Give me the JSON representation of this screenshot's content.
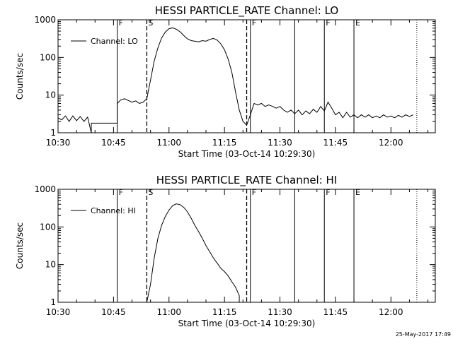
{
  "footer_timestamp": "25-May-2017 17:49",
  "chart_data": [
    {
      "type": "line",
      "title": "HESSI PARTICLE_RATE Channel: LO",
      "xlabel": "Start Time (03-Oct-14 10:29:30)",
      "ylabel": "Counts/sec",
      "xlim": [
        "10:30",
        "12:12"
      ],
      "ylim": [
        1,
        1000
      ],
      "yscale": "log",
      "x_ticks": [
        "10:30",
        "10:45",
        "11:00",
        "11:15",
        "11:30",
        "11:45",
        "12:00"
      ],
      "y_ticks": [
        "1",
        "10",
        "100",
        "1000"
      ],
      "legend": "top-left",
      "series": [
        {
          "name": "Channel: LO",
          "points": [
            [
              "10:30",
              2.5
            ],
            [
              "10:31",
              2.2
            ],
            [
              "10:32",
              2.8
            ],
            [
              "10:33",
              2.0
            ],
            [
              "10:34",
              2.8
            ],
            [
              "10:35",
              2.1
            ],
            [
              "10:36",
              2.7
            ],
            [
              "10:37",
              2.0
            ],
            [
              "10:38",
              2.6
            ],
            [
              "10:39",
              1.0
            ],
            [
              "10:39",
              1.8
            ],
            [
              "10:40",
              1.8
            ],
            [
              "10:42",
              1.8
            ],
            [
              "10:44",
              1.8
            ],
            [
              "10:46",
              1.8
            ],
            [
              "10:46",
              6.0
            ],
            [
              "10:47",
              7.5
            ],
            [
              "10:48",
              8.0
            ],
            [
              "10:49",
              7.2
            ],
            [
              "10:50",
              6.5
            ],
            [
              "10:51",
              7.0
            ],
            [
              "10:52",
              6.0
            ],
            [
              "10:53",
              6.5
            ],
            [
              "10:54",
              8.0
            ],
            [
              "10:55",
              25.0
            ],
            [
              "10:56",
              80.0
            ],
            [
              "10:57",
              180.0
            ],
            [
              "10:58",
              330.0
            ],
            [
              "10:59",
              470.0
            ],
            [
              "11:00",
              580.0
            ],
            [
              "11:01",
              610.0
            ],
            [
              "11:02",
              560.0
            ],
            [
              "11:03",
              480.0
            ],
            [
              "11:04",
              380.0
            ],
            [
              "11:05",
              310.0
            ],
            [
              "11:06",
              280.0
            ],
            [
              "11:07",
              270.0
            ],
            [
              "11:08",
              260.0
            ],
            [
              "11:09",
              280.0
            ],
            [
              "11:10",
              270.0
            ],
            [
              "11:11",
              300.0
            ],
            [
              "11:12",
              320.0
            ],
            [
              "11:13",
              290.0
            ],
            [
              "11:14",
              230.0
            ],
            [
              "11:15",
              160.0
            ],
            [
              "11:16",
              90.0
            ],
            [
              "11:17",
              40.0
            ],
            [
              "11:18",
              12.0
            ],
            [
              "11:19",
              4.0
            ],
            [
              "11:20",
              2.0
            ],
            [
              "11:21",
              1.6
            ],
            [
              "11:22",
              3.0
            ],
            [
              "11:23",
              6.0
            ],
            [
              "11:24",
              5.5
            ],
            [
              "11:25",
              6.0
            ],
            [
              "11:26",
              5.0
            ],
            [
              "11:27",
              5.5
            ],
            [
              "11:28",
              5.0
            ],
            [
              "11:29",
              4.5
            ],
            [
              "11:30",
              5.0
            ],
            [
              "11:31",
              4.0
            ],
            [
              "11:32",
              3.5
            ],
            [
              "11:33",
              4.0
            ],
            [
              "11:34",
              3.2
            ],
            [
              "11:35",
              4.0
            ],
            [
              "11:36",
              3.0
            ],
            [
              "11:37",
              3.8
            ],
            [
              "11:38",
              3.2
            ],
            [
              "11:39",
              4.2
            ],
            [
              "11:40",
              3.5
            ],
            [
              "11:41",
              5.0
            ],
            [
              "11:42",
              3.8
            ],
            [
              "11:43",
              6.5
            ],
            [
              "11:44",
              4.5
            ],
            [
              "11:45",
              3.0
            ],
            [
              "11:46",
              3.5
            ],
            [
              "11:47",
              2.5
            ],
            [
              "11:48",
              3.5
            ],
            [
              "11:49",
              2.6
            ],
            [
              "11:50",
              3.0
            ],
            [
              "11:51",
              2.5
            ],
            [
              "11:52",
              3.0
            ],
            [
              "11:53",
              2.6
            ],
            [
              "11:54",
              3.0
            ],
            [
              "11:55",
              2.5
            ],
            [
              "11:56",
              2.8
            ],
            [
              "11:57",
              2.5
            ],
            [
              "11:58",
              3.0
            ],
            [
              "11:59",
              2.6
            ],
            [
              "12:00",
              2.8
            ],
            [
              "12:01",
              2.5
            ],
            [
              "12:02",
              2.9
            ],
            [
              "12:03",
              2.6
            ],
            [
              "12:04",
              3.0
            ],
            [
              "12:05",
              2.7
            ],
            [
              "12:06",
              3.0
            ]
          ]
        }
      ],
      "vertical_markers": [
        {
          "time": "10:46",
          "label": "F",
          "style": "solid"
        },
        {
          "time": "10:54",
          "label": "S",
          "style": "dashed"
        },
        {
          "time": "11:21",
          "label": "",
          "style": "dashed"
        },
        {
          "time": "11:22",
          "label": "F",
          "style": "solid"
        },
        {
          "time": "11:34",
          "label": "",
          "style": "solid"
        },
        {
          "time": "11:42",
          "label": "F",
          "style": "solid"
        },
        {
          "time": "11:50",
          "label": "E",
          "style": "solid"
        },
        {
          "time": "12:07",
          "label": "",
          "style": "dotted"
        }
      ]
    },
    {
      "type": "line",
      "title": "HESSI PARTICLE_RATE Channel: HI",
      "xlabel": "Start Time (03-Oct-14 10:29:30)",
      "ylabel": "Counts/sec",
      "xlim": [
        "10:30",
        "12:12"
      ],
      "ylim": [
        1,
        1000
      ],
      "yscale": "log",
      "x_ticks": [
        "10:30",
        "10:45",
        "11:00",
        "11:15",
        "11:30",
        "11:45",
        "12:00"
      ],
      "y_ticks": [
        "1",
        "10",
        "100",
        "1000"
      ],
      "legend": "top-left",
      "series": [
        {
          "name": "Channel: HI",
          "points": [
            [
              "10:54",
              1.0
            ],
            [
              "10:55",
              3.0
            ],
            [
              "10:56",
              15.0
            ],
            [
              "10:57",
              50.0
            ],
            [
              "10:58",
              110.0
            ],
            [
              "10:59",
              190.0
            ],
            [
              "11:00",
              280.0
            ],
            [
              "11:01",
              370.0
            ],
            [
              "11:02",
              410.0
            ],
            [
              "11:03",
              390.0
            ],
            [
              "11:04",
              330.0
            ],
            [
              "11:05",
              250.0
            ],
            [
              "11:06",
              170.0
            ],
            [
              "11:07",
              110.0
            ],
            [
              "11:08",
              75.0
            ],
            [
              "11:09",
              50.0
            ],
            [
              "11:10",
              32.0
            ],
            [
              "11:11",
              22.0
            ],
            [
              "11:12",
              15.0
            ],
            [
              "11:13",
              11.0
            ],
            [
              "11:14",
              8.0
            ],
            [
              "11:15",
              6.5
            ],
            [
              "11:16",
              5.0
            ],
            [
              "11:17",
              3.5
            ],
            [
              "11:18",
              2.5
            ],
            [
              "11:19",
              1.5
            ],
            [
              "11:19",
              1.0
            ]
          ]
        }
      ],
      "vertical_markers": [
        {
          "time": "10:46",
          "label": "F",
          "style": "solid"
        },
        {
          "time": "10:54",
          "label": "S",
          "style": "dashed"
        },
        {
          "time": "11:21",
          "label": "",
          "style": "dashed"
        },
        {
          "time": "11:22",
          "label": "F",
          "style": "solid"
        },
        {
          "time": "11:34",
          "label": "",
          "style": "solid"
        },
        {
          "time": "11:42",
          "label": "F",
          "style": "solid"
        },
        {
          "time": "11:50",
          "label": "E",
          "style": "solid"
        },
        {
          "time": "12:07",
          "label": "",
          "style": "dotted"
        }
      ]
    }
  ]
}
